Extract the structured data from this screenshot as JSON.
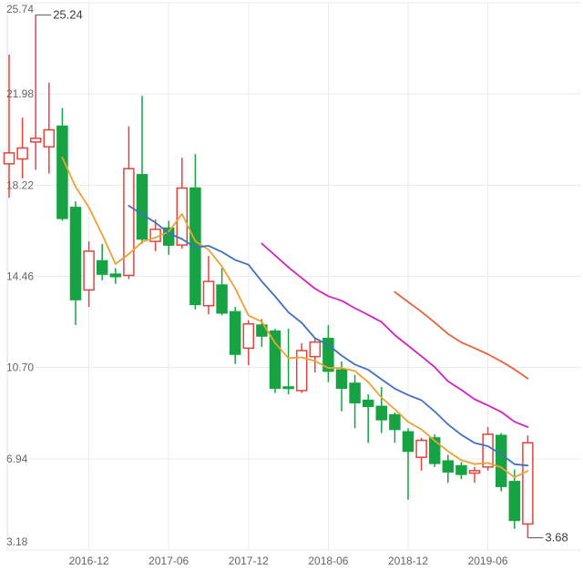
{
  "chart": {
    "y_axis_labels": [
      "25.74",
      "21.98",
      "18.22",
      "14.46",
      "10.70",
      "6.94",
      "3.18"
    ],
    "x_axis_labels": [
      "2016-12",
      "2017-06",
      "2017-12",
      "2018-06",
      "2018-12",
      "2019-06"
    ],
    "annotations": [
      {
        "label": "25.24",
        "attach": "high",
        "candle_index": 2
      },
      {
        "label": "3.68",
        "attach": "low",
        "candle_index": 39
      }
    ],
    "colors": {
      "background": "#ffffff",
      "grid": "#ebebeb",
      "axis_border": "#dddddd",
      "axis_text": "#646464",
      "annotation_text": "#3a3a3a",
      "annotation_line": "#555555",
      "up_candle": "#e2443c",
      "up_fill": "#ffffff",
      "down_candle": "#17a343",
      "ma5": "#f0a132",
      "ma10": "#3e72c1",
      "ma20": "#d81fbe",
      "ma30": "#e8633c"
    }
  },
  "chart_data": {
    "type": "candlestick",
    "title": "",
    "xlabel": "",
    "ylabel": "",
    "ylim": [
      3.18,
      25.74
    ],
    "grid": true,
    "x": [
      "2016-06",
      "2016-07",
      "2016-08",
      "2016-09",
      "2016-10",
      "2016-11",
      "2016-12",
      "2017-01",
      "2017-02",
      "2017-03",
      "2017-04",
      "2017-05",
      "2017-06",
      "2017-07",
      "2017-08",
      "2017-09",
      "2017-10",
      "2017-11",
      "2017-12",
      "2018-01",
      "2018-02",
      "2018-03",
      "2018-04",
      "2018-05",
      "2018-06",
      "2018-07",
      "2018-08",
      "2018-09",
      "2018-10",
      "2018-11",
      "2018-12",
      "2019-01",
      "2019-02",
      "2019-03",
      "2019-04",
      "2019-05",
      "2019-06",
      "2019-07",
      "2019-08",
      "2019-09"
    ],
    "x_tick_indices": [
      6,
      12,
      18,
      24,
      30,
      36
    ],
    "y_ticks": [
      25.74,
      21.98,
      18.22,
      14.46,
      10.7,
      6.94,
      3.18
    ],
    "ohlc_columns": [
      "open",
      "high",
      "low",
      "close"
    ],
    "ohlc": [
      [
        19.1,
        23.6,
        17.7,
        19.55
      ],
      [
        19.3,
        21.0,
        18.5,
        19.75
      ],
      [
        20.0,
        25.24,
        18.85,
        20.15
      ],
      [
        19.8,
        22.45,
        18.7,
        20.5
      ],
      [
        20.65,
        21.4,
        16.75,
        16.85
      ],
      [
        17.3,
        17.55,
        12.45,
        13.5
      ],
      [
        13.9,
        15.9,
        13.2,
        15.5
      ],
      [
        15.1,
        15.8,
        14.3,
        14.55
      ],
      [
        14.55,
        14.8,
        14.15,
        14.45
      ],
      [
        14.5,
        20.65,
        14.35,
        18.9
      ],
      [
        18.65,
        21.9,
        15.8,
        16.0
      ],
      [
        15.9,
        16.8,
        15.5,
        16.4
      ],
      [
        16.45,
        16.75,
        15.35,
        15.75
      ],
      [
        15.75,
        19.35,
        15.6,
        18.1
      ],
      [
        18.1,
        19.5,
        13.1,
        13.3
      ],
      [
        13.25,
        15.3,
        12.9,
        14.25
      ],
      [
        14.1,
        14.8,
        12.85,
        12.95
      ],
      [
        13.0,
        13.2,
        10.85,
        11.25
      ],
      [
        11.5,
        12.65,
        10.8,
        12.5
      ],
      [
        12.45,
        12.7,
        11.55,
        12.0
      ],
      [
        12.2,
        12.3,
        9.65,
        9.85
      ],
      [
        9.9,
        12.3,
        9.6,
        9.85
      ],
      [
        9.75,
        11.7,
        9.65,
        11.4
      ],
      [
        11.15,
        11.9,
        10.5,
        11.75
      ],
      [
        11.9,
        12.45,
        10.1,
        10.55
      ],
      [
        10.6,
        10.95,
        8.9,
        9.85
      ],
      [
        10.05,
        10.4,
        8.2,
        9.25
      ],
      [
        9.35,
        9.6,
        7.6,
        9.1
      ],
      [
        9.1,
        9.9,
        8.0,
        8.55
      ],
      [
        8.75,
        8.85,
        7.6,
        8.15
      ],
      [
        8.05,
        8.2,
        5.25,
        7.25
      ],
      [
        7.0,
        7.8,
        6.45,
        7.7
      ],
      [
        7.8,
        7.95,
        6.6,
        6.75
      ],
      [
        6.85,
        7.1,
        5.95,
        6.4
      ],
      [
        6.65,
        6.8,
        6.1,
        6.3
      ],
      [
        6.35,
        6.6,
        5.95,
        6.45
      ],
      [
        6.6,
        8.25,
        6.45,
        7.95
      ],
      [
        7.9,
        8.0,
        5.6,
        5.8
      ],
      [
        6.0,
        6.5,
        4.05,
        4.4
      ],
      [
        4.25,
        7.9,
        3.68,
        7.6
      ]
    ],
    "moving_averages": [
      {
        "name": "MA5",
        "period": 5,
        "color": "#f0a132"
      },
      {
        "name": "MA10",
        "period": 10,
        "color": "#3e72c1"
      },
      {
        "name": "MA20",
        "period": 20,
        "color": "#d81fbe"
      },
      {
        "name": "MA30",
        "period": 30,
        "color": "#e8633c"
      }
    ],
    "legend_position": "none",
    "up_color": "#e2443c",
    "down_color": "#17a343",
    "annotated_high": 25.24,
    "annotated_low": 3.68
  }
}
